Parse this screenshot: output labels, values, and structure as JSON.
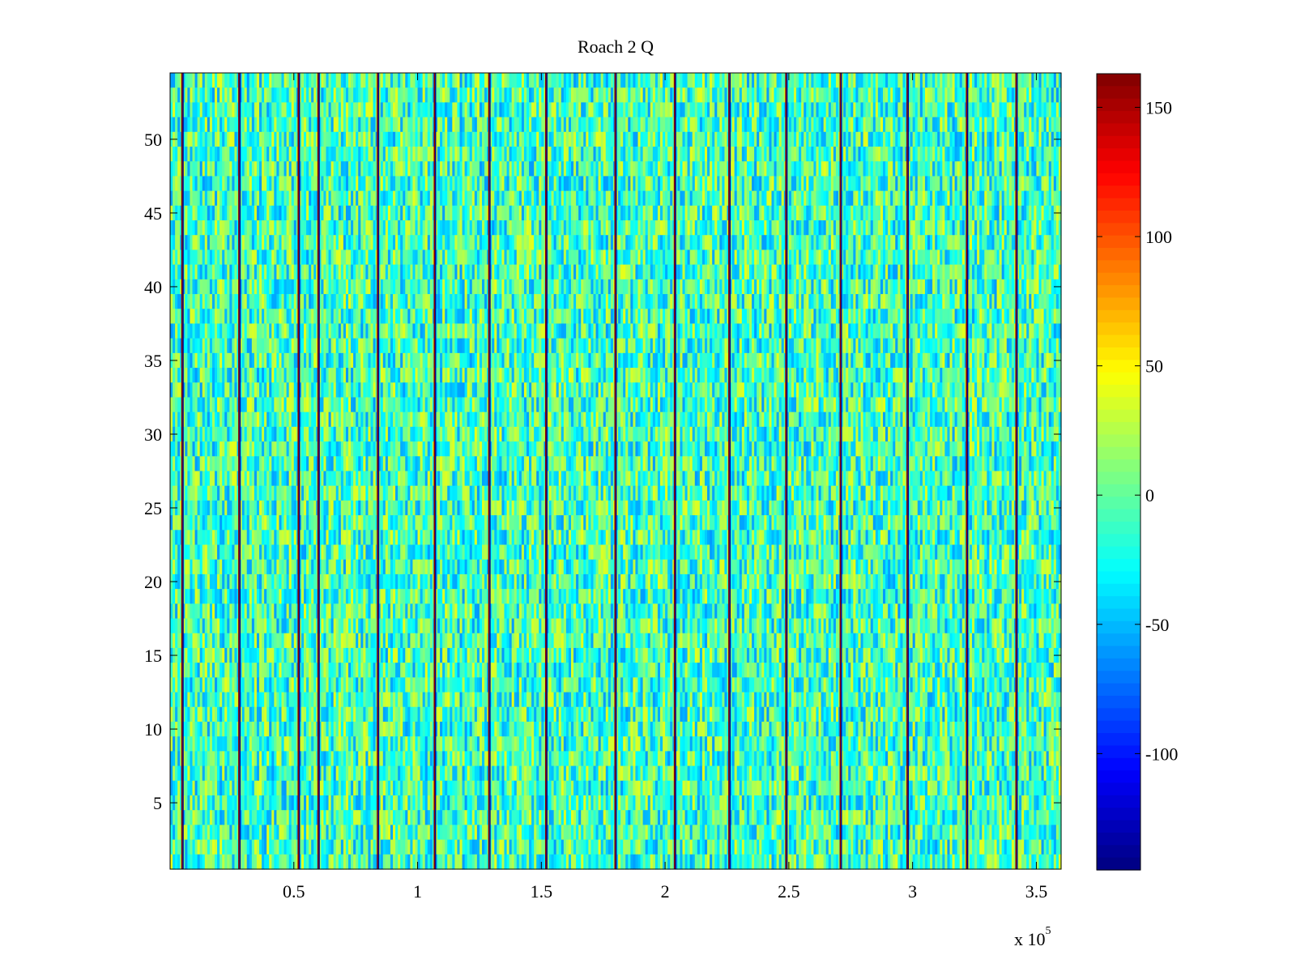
{
  "chart_data": {
    "type": "heatmap",
    "title": "Roach 2 Q",
    "xlabel": "",
    "ylabel": "",
    "xlim": [
      0,
      360000
    ],
    "ylim": [
      0.5,
      54.5
    ],
    "x_ticks": [
      50000,
      100000,
      150000,
      200000,
      250000,
      300000,
      350000
    ],
    "x_tick_labels": [
      "0.5",
      "1",
      "1.5",
      "2",
      "2.5",
      "3",
      "3.5"
    ],
    "x_exponent_label": "x 10",
    "x_exponent_power": "5",
    "y_ticks": [
      5,
      10,
      15,
      20,
      25,
      30,
      35,
      40,
      45,
      50
    ],
    "y_tick_labels": [
      "5",
      "10",
      "15",
      "20",
      "25",
      "30",
      "35",
      "40",
      "45",
      "50"
    ],
    "rows": 54,
    "colormap": "jet",
    "clim": [
      -145,
      163
    ],
    "colorbar": {
      "ticks": [
        150,
        100,
        50,
        0,
        -50,
        -100
      ],
      "tick_labels": [
        "150",
        "100",
        "50",
        "0",
        "-50",
        "-100"
      ]
    },
    "background_value_range": [
      -60,
      40
    ],
    "spike_columns_x": [
      5000,
      28000,
      52000,
      60000,
      84000,
      107000,
      129000,
      152000,
      180000,
      204000,
      226000,
      249000,
      271000,
      298000,
      322000,
      342000
    ],
    "spike_values": [
      160,
      -140
    ],
    "grid": false,
    "colors": {
      "axes_edge": "#000000",
      "background": "#ffffff"
    }
  }
}
